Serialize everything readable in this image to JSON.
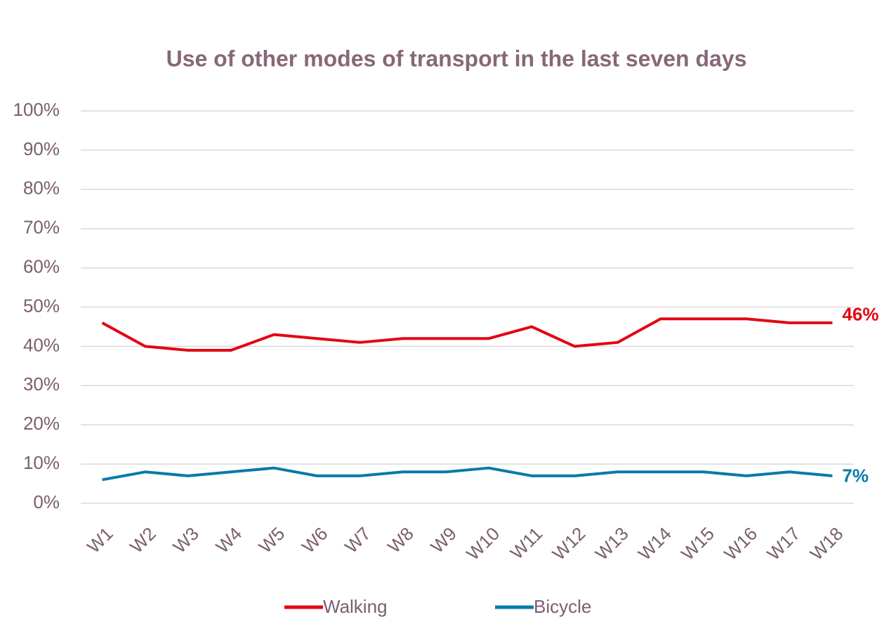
{
  "chart_data": {
    "type": "line",
    "title": "Use of other modes of transport in the last seven days",
    "categories": [
      "W1",
      "W2",
      "W3",
      "W4",
      "W5",
      "W6",
      "W7",
      "W8",
      "W9",
      "W10",
      "W11",
      "W12",
      "W13",
      "W14",
      "W15",
      "W16",
      "W17",
      "W18"
    ],
    "series": [
      {
        "name": "Walking",
        "color": "#e30613",
        "values": [
          46,
          40,
          39,
          39,
          43,
          42,
          41,
          42,
          42,
          42,
          45,
          40,
          41,
          47,
          47,
          47,
          46,
          46
        ],
        "value_labels": [
          null,
          null,
          null,
          null,
          null,
          null,
          null,
          null,
          null,
          null,
          null,
          null,
          null,
          null,
          null,
          null,
          null,
          "46%"
        ]
      },
      {
        "name": "Bicycle",
        "color": "#0a7aa8",
        "values": [
          6,
          8,
          7,
          8,
          9,
          7,
          7,
          8,
          8,
          9,
          7,
          7,
          8,
          8,
          8,
          7,
          8,
          7
        ],
        "value_labels": [
          null,
          null,
          null,
          null,
          null,
          null,
          null,
          null,
          null,
          null,
          null,
          null,
          null,
          null,
          null,
          null,
          null,
          "7%"
        ]
      }
    ],
    "ylim": [
      0,
      100
    ],
    "yticks": [
      {
        "value": 0,
        "label": "0%"
      },
      {
        "value": 10,
        "label": "10%"
      },
      {
        "value": 20,
        "label": "20%"
      },
      {
        "value": 30,
        "label": "30%"
      },
      {
        "value": 40,
        "label": "40%"
      },
      {
        "value": 50,
        "label": "50%"
      },
      {
        "value": 60,
        "label": "60%"
      },
      {
        "value": 70,
        "label": "70%"
      },
      {
        "value": 80,
        "label": "80%"
      },
      {
        "value": 90,
        "label": "90%"
      },
      {
        "value": 100,
        "label": "100%"
      }
    ],
    "grid": true,
    "legend": "bottom"
  }
}
